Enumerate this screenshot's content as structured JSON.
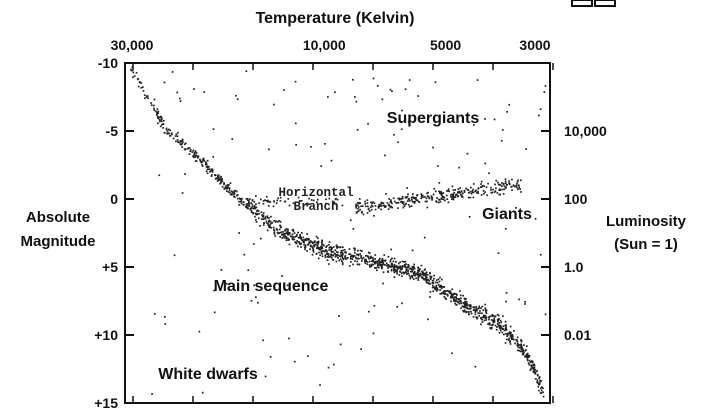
{
  "chart_data": {
    "type": "scatter",
    "title": "",
    "top_axis": {
      "label": "Temperature  (Kelvin)",
      "ticks": [
        {
          "label": "30,000",
          "value": 30000
        },
        {
          "label": "10,000",
          "value": 10000
        },
        {
          "label": "5000",
          "value": 5000
        },
        {
          "label": "3000",
          "value": 3000
        }
      ]
    },
    "left_axis": {
      "label_line1": "Absolute",
      "label_line2": "Magnitude",
      "range": [
        -10,
        15
      ],
      "inverted": true,
      "ticks": [
        {
          "label": "-10",
          "value": -10
        },
        {
          "label": "-5",
          "value": -5
        },
        {
          "label": "0",
          "value": 0
        },
        {
          "label": "+5",
          "value": 5
        },
        {
          "label": "+10",
          "value": 10
        },
        {
          "label": "+15",
          "value": 15
        }
      ]
    },
    "right_axis": {
      "label_line1": "Luminosity",
      "label_line2": "(Sun = 1)",
      "scale": "log",
      "ticks": [
        {
          "label": "10,000",
          "value": 10000,
          "magnitude": -5
        },
        {
          "label": "100",
          "value": 100,
          "magnitude": 0
        },
        {
          "label": "1.0",
          "value": 1,
          "magnitude": 5
        },
        {
          "label": "0.01",
          "value": 0.01,
          "magnitude": 10
        }
      ]
    },
    "regions": {
      "supergiants": "Supergiants",
      "giants": "Giants",
      "horizontal_branch_line1": "Horizontal",
      "horizontal_branch_line2": "Branch",
      "main_sequence": "Main sequence",
      "white_dwarfs": "White dwarfs"
    },
    "series": [
      {
        "points_approx": 2000
      }
    ],
    "grid": false,
    "legend": "none"
  }
}
